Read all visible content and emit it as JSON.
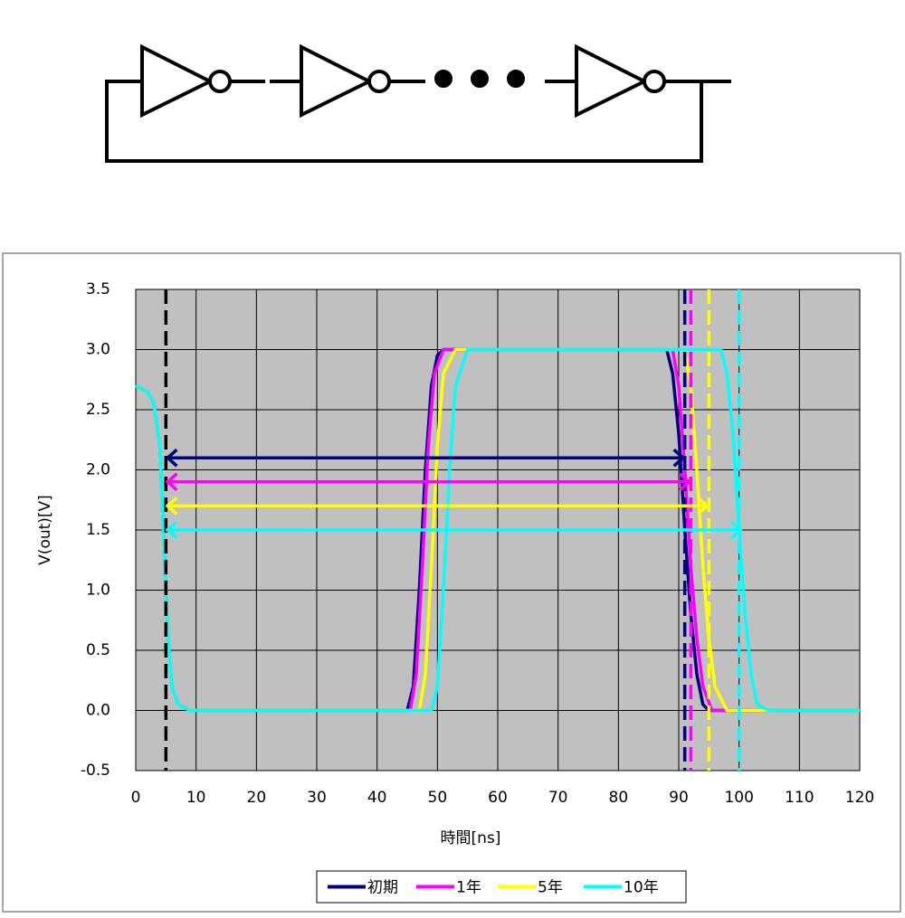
{
  "chart_data": {
    "type": "line",
    "xlabel": "時間[ns]",
    "ylabel": "V(out)[V]",
    "xlim": [
      0,
      120
    ],
    "xticks": [
      0,
      10,
      20,
      30,
      40,
      50,
      60,
      70,
      80,
      90,
      100,
      110,
      120
    ],
    "ylim": [
      -0.5,
      3.5
    ],
    "yticks": [
      -0.5,
      {
        "value": 0,
        "label": "0.0"
      },
      0.5,
      {
        "value": 1,
        "label": "1.0"
      },
      1.5,
      {
        "value": 2,
        "label": "2.0"
      },
      2.5,
      {
        "value": 3,
        "label": "3.0"
      },
      3.5
    ],
    "grid": true,
    "background": "#c0c0c0",
    "legend": "bottom",
    "series": [
      {
        "name": "初期",
        "color": "#000080",
        "x": [
          0,
          2,
          3,
          4,
          4.5,
          5,
          5.5,
          6,
          7,
          9,
          45,
          46,
          47,
          48,
          49,
          50,
          51,
          88,
          89,
          90,
          91,
          92,
          93,
          94,
          95,
          120
        ],
        "values": [
          2.7,
          2.65,
          2.55,
          2.2,
          1.6,
          1.0,
          0.5,
          0.2,
          0.05,
          0,
          0,
          0.2,
          1.0,
          2.0,
          2.7,
          2.95,
          3.0,
          3.0,
          2.8,
          2.3,
          1.5,
          0.8,
          0.3,
          0.05,
          0,
          0
        ]
      },
      {
        "name": "1年",
        "color": "#ff00ff",
        "x": [
          0,
          2,
          3,
          4,
          4.5,
          5,
          5.5,
          6,
          7,
          9,
          45.5,
          46.5,
          47.5,
          48.5,
          49.5,
          51,
          89,
          90,
          91,
          92,
          93,
          94,
          95.5,
          120
        ],
        "values": [
          2.7,
          2.65,
          2.55,
          2.2,
          1.6,
          1.0,
          0.5,
          0.2,
          0.05,
          0,
          0,
          0.3,
          1.2,
          2.2,
          2.8,
          3.0,
          3.0,
          2.7,
          2.0,
          1.2,
          0.6,
          0.2,
          0,
          0
        ]
      },
      {
        "name": "5年",
        "color": "#ffff00",
        "x": [
          0,
          2,
          3,
          4,
          4.5,
          5,
          5.5,
          6,
          7,
          9,
          47,
          48,
          49,
          50,
          51,
          53,
          91,
          92,
          93,
          94,
          95,
          96,
          98,
          120
        ],
        "values": [
          2.7,
          2.65,
          2.55,
          2.2,
          1.6,
          1.0,
          0.5,
          0.2,
          0.05,
          0,
          0,
          0.3,
          1.2,
          2.2,
          2.8,
          3.0,
          3.0,
          2.7,
          2.0,
          1.2,
          0.6,
          0.2,
          0,
          0
        ]
      },
      {
        "name": "10年",
        "color": "#00ffff",
        "x": [
          0,
          2,
          3,
          4,
          4.5,
          5,
          5.5,
          6,
          7,
          9,
          49,
          50,
          51,
          52,
          53,
          55,
          97,
          98,
          99,
          100,
          101,
          102,
          103,
          105,
          120
        ],
        "values": [
          2.7,
          2.65,
          2.55,
          2.2,
          1.6,
          1.0,
          0.5,
          0.2,
          0.05,
          0,
          0,
          0.2,
          1.0,
          2.0,
          2.7,
          3.0,
          3.0,
          2.8,
          2.3,
          1.5,
          0.8,
          0.3,
          0.05,
          0,
          0
        ]
      }
    ],
    "markers": [
      {
        "x": 5,
        "color": "#000000"
      },
      {
        "x": 91,
        "color": "#000080"
      },
      {
        "x": 92,
        "color": "#ff00ff"
      },
      {
        "x": 95,
        "color": "#ffff00"
      },
      {
        "x": 100,
        "color": "#00ffff"
      }
    ],
    "arrows": [
      {
        "y": 2.1,
        "x1": 5,
        "x2": 91,
        "color": "#000080"
      },
      {
        "y": 1.9,
        "x1": 5,
        "x2": 92,
        "color": "#ff00ff"
      },
      {
        "y": 1.7,
        "x1": 5,
        "x2": 95,
        "color": "#ffff00"
      },
      {
        "y": 1.5,
        "x1": 5,
        "x2": 100.5,
        "color": "#00ffff"
      }
    ]
  }
}
